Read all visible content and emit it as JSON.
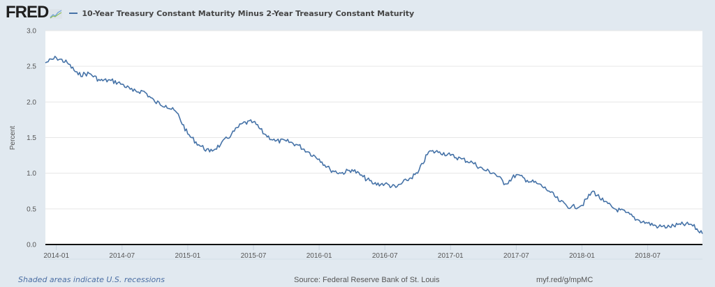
{
  "header": {
    "logo": "FRED",
    "logo_icon": "chart-line-icon",
    "series_label": "10-Year Treasury Constant Maturity Minus 2-Year Treasury Constant Maturity"
  },
  "footer": {
    "recession_note": "Shaded areas indicate U.S. recessions",
    "source": "Source: Federal Reserve Bank of St. Louis",
    "short_url": "myf.red/g/mpMC"
  },
  "colors": {
    "line": "#4572a7",
    "background": "#e1e9f0",
    "plot": "#ffffff",
    "grid": "#e6e6e6"
  },
  "chart_data": {
    "type": "line",
    "title": "10-Year Treasury Constant Maturity Minus 2-Year Treasury Constant Maturity",
    "xlabel": "",
    "ylabel": "Percent",
    "ylim": [
      0,
      3.0
    ],
    "yticks": [
      "0.0",
      "0.5",
      "1.0",
      "1.5",
      "2.0",
      "2.5",
      "3.0"
    ],
    "ytick_values": [
      0,
      0.5,
      1.0,
      1.5,
      2.0,
      2.5,
      3.0
    ],
    "xticks": [
      "2014-01",
      "2014-07",
      "2015-01",
      "2015-07",
      "2016-01",
      "2016-07",
      "2017-01",
      "2017-07",
      "2018-01",
      "2018-07"
    ],
    "xlim": [
      "2013-12",
      "2018-12"
    ],
    "grid": true,
    "legend": "top-left",
    "series": [
      {
        "name": "10-Year Treasury Constant Maturity Minus 2-Year Treasury Constant Maturity",
        "x": [
          "2013-12",
          "2014-01",
          "2014-02",
          "2014-03",
          "2014-04",
          "2014-05",
          "2014-06",
          "2014-07",
          "2014-08",
          "2014-09",
          "2014-10",
          "2014-11",
          "2014-12",
          "2015-01",
          "2015-02",
          "2015-03",
          "2015-04",
          "2015-05",
          "2015-06",
          "2015-07",
          "2015-08",
          "2015-09",
          "2015-10",
          "2015-11",
          "2015-12",
          "2016-01",
          "2016-02",
          "2016-03",
          "2016-04",
          "2016-05",
          "2016-06",
          "2016-07",
          "2016-08",
          "2016-09",
          "2016-10",
          "2016-11",
          "2016-12",
          "2017-01",
          "2017-02",
          "2017-03",
          "2017-04",
          "2017-05",
          "2017-06",
          "2017-07",
          "2017-08",
          "2017-09",
          "2017-10",
          "2017-11",
          "2017-12",
          "2018-01",
          "2018-02",
          "2018-03",
          "2018-04",
          "2018-05",
          "2018-06",
          "2018-07",
          "2018-08",
          "2018-09",
          "2018-10",
          "2018-11",
          "2018-12"
        ],
        "values": [
          2.55,
          2.62,
          2.55,
          2.38,
          2.4,
          2.3,
          2.3,
          2.25,
          2.15,
          2.15,
          2.0,
          1.95,
          1.85,
          1.55,
          1.4,
          1.3,
          1.4,
          1.55,
          1.7,
          1.72,
          1.55,
          1.45,
          1.45,
          1.4,
          1.3,
          1.2,
          1.05,
          1.0,
          1.05,
          0.95,
          0.85,
          0.85,
          0.8,
          0.9,
          1.0,
          1.3,
          1.3,
          1.25,
          1.2,
          1.15,
          1.05,
          1.0,
          0.85,
          0.98,
          0.9,
          0.85,
          0.75,
          0.6,
          0.52,
          0.55,
          0.75,
          0.6,
          0.5,
          0.45,
          0.35,
          0.3,
          0.25,
          0.25,
          0.28,
          0.28,
          0.15
        ]
      }
    ]
  }
}
